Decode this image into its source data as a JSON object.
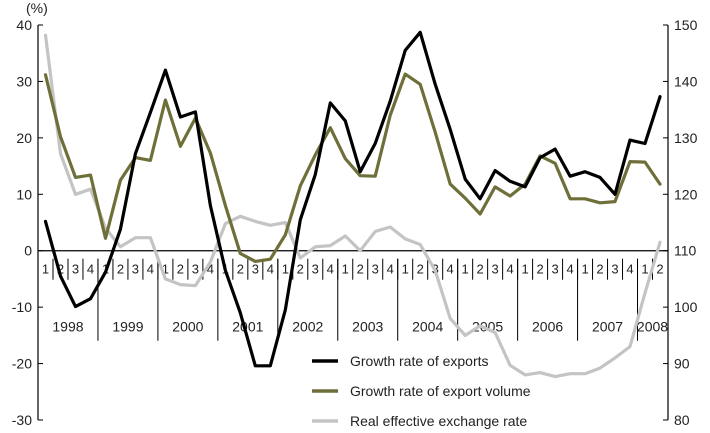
{
  "chart_data": {
    "type": "line",
    "unit_label": "(%)",
    "left_axis": {
      "ylim": [
        -30,
        40
      ],
      "ticks": [
        40,
        30,
        20,
        10,
        0,
        -10,
        -20,
        -30
      ]
    },
    "right_axis": {
      "ylim": [
        80,
        150
      ],
      "ticks": [
        150,
        140,
        130,
        120,
        110,
        100,
        90,
        80
      ]
    },
    "quarters": [
      "1",
      "2",
      "3",
      "4",
      "1",
      "2",
      "3",
      "4",
      "1",
      "2",
      "3",
      "4",
      "1",
      "2",
      "3",
      "4",
      "1",
      "2",
      "3",
      "4",
      "1",
      "2",
      "3",
      "4",
      "1",
      "2",
      "3",
      "4",
      "1",
      "2",
      "3",
      "4",
      "1",
      "2",
      "3",
      "4",
      "1",
      "2",
      "3",
      "4",
      "1",
      "2"
    ],
    "years": [
      {
        "label": "1998",
        "start": 0,
        "end": 3
      },
      {
        "label": "1999",
        "start": 4,
        "end": 7
      },
      {
        "label": "2000",
        "start": 8,
        "end": 11
      },
      {
        "label": "2001",
        "start": 12,
        "end": 15
      },
      {
        "label": "2002",
        "start": 16,
        "end": 19
      },
      {
        "label": "2003",
        "start": 20,
        "end": 23
      },
      {
        "label": "2004",
        "start": 24,
        "end": 27
      },
      {
        "label": "2005",
        "start": 28,
        "end": 31
      },
      {
        "label": "2006",
        "start": 32,
        "end": 35
      },
      {
        "label": "2007",
        "start": 36,
        "end": 39
      },
      {
        "label": "2008",
        "start": 40,
        "end": 41
      }
    ],
    "series": [
      {
        "name": "Growth rate of exports",
        "axis": "left",
        "color": "#000000",
        "values": [
          5.2,
          -4.5,
          -9.9,
          -8.5,
          -3.8,
          3.8,
          17.2,
          24.5,
          32.0,
          23.7,
          24.6,
          8.0,
          -3.5,
          -11.0,
          -20.4,
          -20.4,
          -10.5,
          5.5,
          13.5,
          26.2,
          23.0,
          14.0,
          19.0,
          26.5,
          35.5,
          38.7,
          29.5,
          21.5,
          12.7,
          9.2,
          14.2,
          12.3,
          11.3,
          16.5,
          18.0,
          13.2,
          14.0,
          13.0,
          10.0,
          19.6,
          19.0,
          27.3
        ]
      },
      {
        "name": "Growth rate of export volume",
        "axis": "left",
        "color": "#6f6f3a",
        "values": [
          31.2,
          20.2,
          13.0,
          13.4,
          2.2,
          12.5,
          16.5,
          16.0,
          26.7,
          18.5,
          23.5,
          17.3,
          8.0,
          -0.5,
          -1.9,
          -1.5,
          2.8,
          11.5,
          17.0,
          21.8,
          16.3,
          13.3,
          13.2,
          24.0,
          31.3,
          29.5,
          21.0,
          11.8,
          9.3,
          6.5,
          11.3,
          9.7,
          11.8,
          16.8,
          15.5,
          9.2,
          9.2,
          8.5,
          8.7,
          15.8,
          15.7,
          11.8
        ]
      },
      {
        "name": "Real effective exchange rate",
        "axis": "right",
        "color": "#c4c4c4",
        "values": [
          148.2,
          127.2,
          120.0,
          120.9,
          114.0,
          110.7,
          112.3,
          112.3,
          105.0,
          104.0,
          103.8,
          108.0,
          114.8,
          116.1,
          115.2,
          114.5,
          115.0,
          108.7,
          110.7,
          110.9,
          112.6,
          110.0,
          113.4,
          114.2,
          112.1,
          111.1,
          106.5,
          98.0,
          95.0,
          96.7,
          95.5,
          89.7,
          88.0,
          88.4,
          87.7,
          88.2,
          88.2,
          89.2,
          91.0,
          93.0,
          102.5,
          111.5
        ]
      }
    ]
  }
}
